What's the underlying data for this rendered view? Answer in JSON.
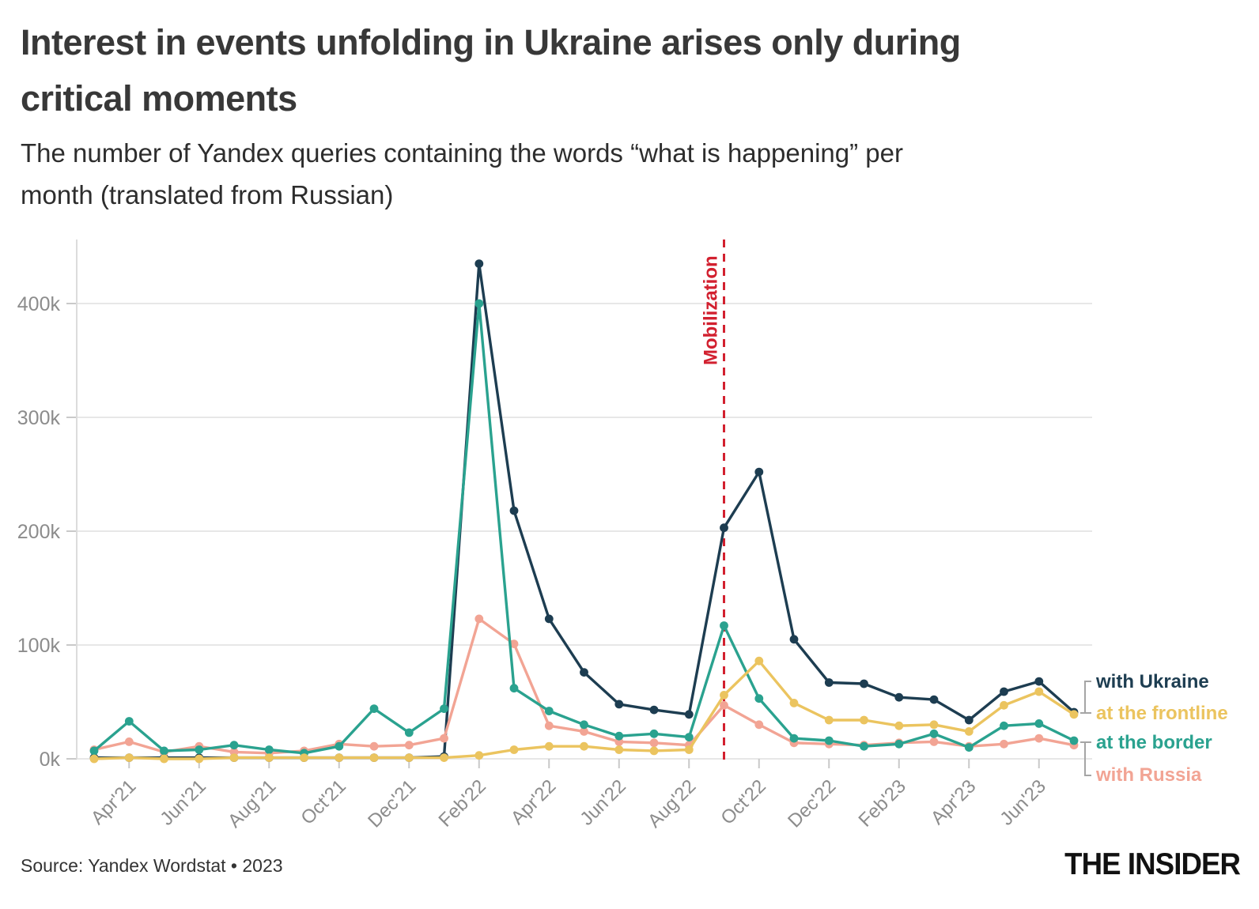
{
  "header": {
    "title_line1": "Interest in events unfolding in Ukraine arises only during",
    "title_line2": "critical moments",
    "subtitle_line1": "The number of Yandex queries containing the words “what is happening” per",
    "subtitle_line2": "month (translated from Russian)"
  },
  "footer": {
    "source": "Source: Yandex Wordstat • 2023",
    "logo": "THE INSIDER"
  },
  "chart_data": {
    "type": "line",
    "title": "Interest in events unfolding in Ukraine arises only during critical moments",
    "subtitle": "The number of Yandex queries containing the words “what is happening” per month (translated from Russian)",
    "unit": "queries per month (thousands)",
    "x": [
      "Mar'21",
      "Apr'21",
      "May'21",
      "Jun'21",
      "Jul'21",
      "Aug'21",
      "Sep'21",
      "Oct'21",
      "Nov'21",
      "Dec'21",
      "Jan'22",
      "Feb'22",
      "Mar'22",
      "Apr'22",
      "May'22",
      "Jun'22",
      "Jul'22",
      "Aug'22",
      "Sep'22",
      "Oct'22",
      "Nov'22",
      "Dec'22",
      "Jan'23",
      "Feb'23",
      "Mar'23",
      "Apr'23",
      "May'23",
      "Jun'23",
      "Jul'23"
    ],
    "x_tick_labels": [
      "Apr'21",
      "Jun'21",
      "Aug'21",
      "Oct'21",
      "Dec'21",
      "Feb'22",
      "Apr'22",
      "Jun'22",
      "Aug'22",
      "Oct'22",
      "Dec'22",
      "Feb'23",
      "Apr'23",
      "Jun'23"
    ],
    "x_tick_indices": [
      1,
      3,
      5,
      7,
      9,
      11,
      13,
      15,
      17,
      19,
      21,
      23,
      25,
      27
    ],
    "y_ticks": [
      {
        "label": "0k",
        "value": 0
      },
      {
        "label": "100k",
        "value": 100
      },
      {
        "label": "200k",
        "value": 200
      },
      {
        "label": "300k",
        "value": 300
      },
      {
        "label": "400k",
        "value": 400
      }
    ],
    "ylim_k": [
      0,
      455
    ],
    "grid": "horizontal",
    "series": [
      {
        "name": "with Ukraine",
        "color": "#1d3d51",
        "values_k": [
          1,
          1,
          1,
          1,
          1,
          1,
          1,
          1,
          1,
          1,
          2,
          435,
          218,
          123,
          76,
          48,
          43,
          39,
          203,
          252,
          105,
          67,
          66,
          54,
          52,
          34,
          59,
          68,
          41
        ]
      },
      {
        "name": "at the frontline",
        "color": "#ebc45f",
        "values_k": [
          0,
          1,
          0,
          0,
          1,
          1,
          1,
          1,
          1,
          1,
          1,
          3,
          8,
          11,
          11,
          8,
          7,
          8,
          56,
          86,
          49,
          34,
          34,
          29,
          30,
          24,
          47,
          59,
          39
        ]
      },
      {
        "name": "at the border",
        "color": "#2aa28f",
        "values_k": [
          7,
          33,
          7,
          8,
          12,
          8,
          5,
          11,
          44,
          23,
          44,
          400,
          62,
          42,
          30,
          20,
          22,
          19,
          117,
          53,
          18,
          16,
          11,
          13,
          22,
          10,
          29,
          31,
          16
        ]
      },
      {
        "name": "with Russia",
        "color": "#f2a494",
        "values_k": [
          8,
          15,
          6,
          11,
          6,
          5,
          7,
          13,
          11,
          12,
          18,
          123,
          101,
          29,
          24,
          15,
          14,
          12,
          47,
          30,
          14,
          13,
          12,
          14,
          15,
          11,
          13,
          18,
          12
        ]
      }
    ],
    "annotation": {
      "label": "Mobilization",
      "month": "Sep'22",
      "month_index": 18,
      "color": "#d2202f",
      "style": "dashed-vertical-line"
    },
    "legend_position": "right-end",
    "colors": {
      "grid": "#e7e7e7",
      "axis": "#dcdcdc",
      "tick": "#c9c9c9",
      "tick_label": "#8c8c8c",
      "bracket": "#a5a5a5"
    }
  }
}
